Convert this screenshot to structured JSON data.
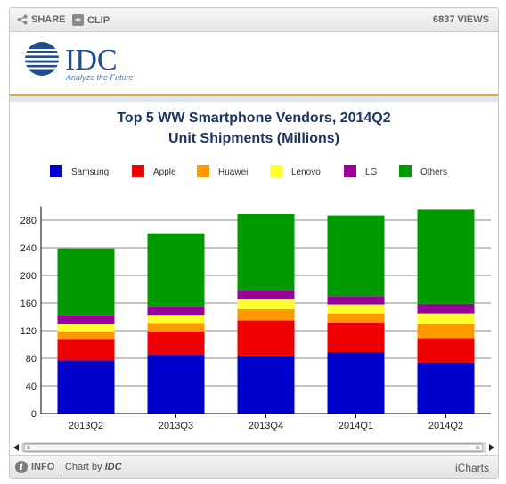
{
  "toolbar": {
    "share_label": "SHARE",
    "clip_label": "CLIP",
    "views_label": "6837 VIEWS"
  },
  "logo": {
    "name": "IDC",
    "tagline": "Analyze the Future"
  },
  "footer": {
    "info_label": "INFO",
    "chart_by_prefix": "| Chart by",
    "chart_by_name": "IDC",
    "brand": "iCharts"
  },
  "colors": {
    "Samsung": "#0000cc",
    "Apple": "#ee0000",
    "Huawei": "#ff9900",
    "Lenovo": "#ffff33",
    "LG": "#990099",
    "Others": "#009900"
  },
  "chart_data": {
    "type": "bar",
    "stacked": true,
    "title": "Top 5 WW Smartphone Vendors, 2014Q2",
    "subtitle": "Unit Shipments (Millions)",
    "categories": [
      "2013Q2",
      "2013Q3",
      "2013Q4",
      "2014Q1",
      "2014Q2"
    ],
    "series": [
      {
        "name": "Samsung",
        "values": [
          77,
          85,
          84,
          89,
          74
        ]
      },
      {
        "name": "Apple",
        "values": [
          31,
          34,
          51,
          43,
          35
        ]
      },
      {
        "name": "Huawei",
        "values": [
          11,
          12,
          16,
          13,
          20
        ]
      },
      {
        "name": "Lenovo",
        "values": [
          11,
          12,
          14,
          13,
          16
        ]
      },
      {
        "name": "LG",
        "values": [
          12,
          12,
          13,
          12,
          14
        ]
      },
      {
        "name": "Others",
        "values": [
          97,
          106,
          111,
          117,
          136
        ]
      }
    ],
    "yticks": [
      0,
      40,
      80,
      120,
      160,
      200,
      240,
      280
    ],
    "ylim": [
      0,
      300
    ],
    "grid": true,
    "legend_position": "top"
  }
}
